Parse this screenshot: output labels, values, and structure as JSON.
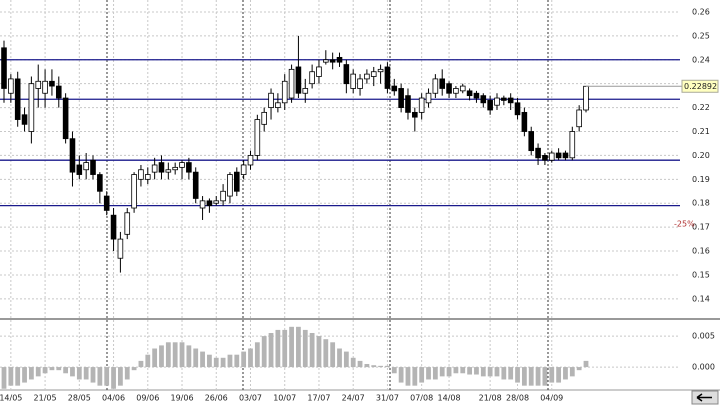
{
  "chart_data": [
    {
      "type": "candlestick",
      "categories": [
        null,
        "14/05",
        null,
        null,
        null,
        null,
        "21/05",
        null,
        null,
        null,
        null,
        "28/05",
        null,
        null,
        null,
        null,
        "04/06",
        null,
        null,
        null,
        null,
        "09/06",
        null,
        null,
        null,
        null,
        "19/06",
        null,
        null,
        null,
        null,
        "26/06",
        null,
        null,
        null,
        null,
        "03/07",
        null,
        null,
        null,
        null,
        "10/07",
        null,
        null,
        null,
        null,
        "17/07",
        null,
        null,
        null,
        null,
        "24/07",
        null,
        null,
        null,
        null,
        "31/07",
        null,
        null,
        null,
        null,
        "07/08",
        null,
        null,
        null,
        "14/08",
        null,
        null,
        null,
        null,
        null,
        "21/08",
        null,
        null,
        null,
        "28/08",
        null,
        null,
        null,
        null,
        "04/09",
        null,
        null,
        null,
        null,
        null
      ],
      "ohlc": [
        [
          0.245,
          0.248,
          0.222,
          0.228
        ],
        [
          0.226,
          0.234,
          0.222,
          0.232
        ],
        [
          0.232,
          0.235,
          0.212,
          0.215
        ],
        [
          0.217,
          0.22,
          0.21,
          0.213
        ],
        [
          0.21,
          0.233,
          0.205,
          0.23
        ],
        [
          0.228,
          0.238,
          0.22,
          0.231
        ],
        [
          0.226,
          0.236,
          0.22,
          0.231
        ],
        [
          0.231,
          0.236,
          0.225,
          0.229
        ],
        [
          0.229,
          0.233,
          0.22,
          0.224
        ],
        [
          0.224,
          0.226,
          0.205,
          0.207
        ],
        [
          0.207,
          0.21,
          0.187,
          0.193
        ],
        [
          0.196,
          0.2,
          0.19,
          0.192
        ],
        [
          0.194,
          0.201,
          0.19,
          0.197
        ],
        [
          0.198,
          0.2,
          0.19,
          0.192
        ],
        [
          0.192,
          0.193,
          0.18,
          0.185
        ],
        [
          0.183,
          0.185,
          0.175,
          0.177
        ],
        [
          0.175,
          0.178,
          0.16,
          0.165
        ],
        [
          0.157,
          0.168,
          0.151,
          0.165
        ],
        [
          0.167,
          0.178,
          0.165,
          0.176
        ],
        [
          0.178,
          0.193,
          0.176,
          0.192
        ],
        [
          0.19,
          0.196,
          0.187,
          0.194
        ],
        [
          0.19,
          0.195,
          0.188,
          0.192
        ],
        [
          0.193,
          0.199,
          0.19,
          0.196
        ],
        [
          0.197,
          0.2,
          0.19,
          0.193
        ],
        [
          0.193,
          0.197,
          0.19,
          0.194
        ],
        [
          0.194,
          0.197,
          0.192,
          0.195
        ],
        [
          0.195,
          0.198,
          0.19,
          0.197
        ],
        [
          0.197,
          0.199,
          0.19,
          0.193
        ],
        [
          0.193,
          0.195,
          0.18,
          0.182
        ],
        [
          0.178,
          0.183,
          0.173,
          0.181
        ],
        [
          0.181,
          0.182,
          0.176,
          0.179
        ],
        [
          0.18,
          0.183,
          0.179,
          0.181
        ],
        [
          0.181,
          0.188,
          0.179,
          0.185
        ],
        [
          0.183,
          0.193,
          0.18,
          0.192
        ],
        [
          0.193,
          0.195,
          0.183,
          0.185
        ],
        [
          0.192,
          0.198,
          0.19,
          0.196
        ],
        [
          0.196,
          0.202,
          0.194,
          0.2
        ],
        [
          0.2,
          0.217,
          0.198,
          0.215
        ],
        [
          0.213,
          0.22,
          0.21,
          0.218
        ],
        [
          0.22,
          0.228,
          0.215,
          0.226
        ],
        [
          0.22,
          0.226,
          0.218,
          0.222
        ],
        [
          0.222,
          0.234,
          0.219,
          0.231
        ],
        [
          0.224,
          0.238,
          0.222,
          0.236
        ],
        [
          0.237,
          0.25,
          0.224,
          0.226
        ],
        [
          0.226,
          0.232,
          0.222,
          0.228
        ],
        [
          0.23,
          0.238,
          0.228,
          0.235
        ],
        [
          0.233,
          0.24,
          0.23,
          0.237
        ],
        [
          0.239,
          0.244,
          0.238,
          0.24
        ],
        [
          0.24,
          0.243,
          0.236,
          0.239
        ],
        [
          0.241,
          0.243,
          0.237,
          0.239
        ],
        [
          0.238,
          0.24,
          0.226,
          0.23
        ],
        [
          0.228,
          0.236,
          0.226,
          0.234
        ],
        [
          0.228,
          0.234,
          0.225,
          0.232
        ],
        [
          0.232,
          0.236,
          0.23,
          0.234
        ],
        [
          0.233,
          0.237,
          0.229,
          0.235
        ],
        [
          0.235,
          0.238,
          0.23,
          0.236
        ],
        [
          0.237,
          0.239,
          0.226,
          0.228
        ],
        [
          0.229,
          0.232,
          0.225,
          0.227
        ],
        [
          0.228,
          0.23,
          0.218,
          0.22
        ],
        [
          0.225,
          0.228,
          0.215,
          0.218
        ],
        [
          0.218,
          0.22,
          0.21,
          0.216
        ],
        [
          0.218,
          0.226,
          0.215,
          0.224
        ],
        [
          0.222,
          0.228,
          0.22,
          0.226
        ],
        [
          0.226,
          0.234,
          0.224,
          0.232
        ],
        [
          0.232,
          0.236,
          0.225,
          0.228
        ],
        [
          0.23,
          0.231,
          0.224,
          0.226
        ],
        [
          0.226,
          0.229,
          0.224,
          0.228
        ],
        [
          0.227,
          0.23,
          0.226,
          0.229
        ],
        [
          0.227,
          0.228,
          0.223,
          0.225
        ],
        [
          0.226,
          0.227,
          0.222,
          0.224
        ],
        [
          0.225,
          0.226,
          0.22,
          0.222
        ],
        [
          0.223,
          0.225,
          0.217,
          0.219
        ],
        [
          0.221,
          0.226,
          0.219,
          0.224
        ],
        [
          0.224,
          0.225,
          0.221,
          0.223
        ],
        [
          0.224,
          0.226,
          0.219,
          0.222
        ],
        [
          0.222,
          0.224,
          0.215,
          0.217
        ],
        [
          0.218,
          0.22,
          0.208,
          0.21
        ],
        [
          0.21,
          0.212,
          0.2,
          0.202
        ],
        [
          0.203,
          0.205,
          0.196,
          0.199
        ],
        [
          0.2,
          0.201,
          0.196,
          0.198
        ],
        [
          0.198,
          0.202,
          0.197,
          0.201
        ],
        [
          0.201,
          0.203,
          0.198,
          0.199
        ],
        [
          0.201,
          0.202,
          0.198,
          0.199
        ],
        [
          0.199,
          0.212,
          0.198,
          0.21
        ],
        [
          0.212,
          0.221,
          0.21,
          0.219
        ],
        [
          0.219,
          0.229,
          0.218,
          0.22892
        ]
      ],
      "up_color": "#ffffff",
      "down_color": "#000000",
      "levels": [
        0.24,
        0.2235,
        0.198,
        0.179
      ],
      "level_color": "#1a1a8c",
      "annotation": "-25%",
      "ylim": [
        0.132,
        0.265
      ],
      "yticks": [
        0.14,
        0.15,
        0.16,
        0.17,
        0.18,
        0.19,
        {
          "value": 0.2,
          "label": "0.20"
        },
        0.21,
        0.22,
        0.23,
        0.24,
        0.25,
        0.26
      ],
      "grid": true
    },
    {
      "type": "bar",
      "values": [
        -0.0035,
        -0.003,
        -0.003,
        -0.0025,
        -0.002,
        -0.0015,
        -0.001,
        -0.0005,
        -0.0005,
        -0.001,
        -0.0015,
        -0.002,
        -0.002,
        -0.0025,
        -0.003,
        -0.003,
        -0.0035,
        -0.003,
        -0.002,
        -0.0005,
        0.001,
        0.002,
        0.003,
        0.0035,
        0.004,
        0.004,
        0.004,
        0.0035,
        0.003,
        0.0025,
        0.002,
        0.0015,
        0.0015,
        0.002,
        0.002,
        0.0025,
        0.003,
        0.004,
        0.005,
        0.0055,
        0.006,
        0.006,
        0.0065,
        0.0065,
        0.006,
        0.0055,
        0.005,
        0.0045,
        0.004,
        0.003,
        0.0025,
        0.0015,
        0.001,
        0.0005,
        0.0003,
        0.0002,
        0.0002,
        -0.001,
        -0.0025,
        -0.003,
        -0.003,
        -0.0025,
        -0.002,
        -0.002,
        -0.0015,
        -0.0015,
        -0.001,
        -0.001,
        -0.0012,
        -0.0012,
        -0.0015,
        -0.0015,
        -0.0015,
        -0.002,
        -0.002,
        -0.0025,
        -0.003,
        -0.003,
        -0.003,
        -0.003,
        -0.0025,
        -0.0025,
        -0.002,
        -0.0015,
        -0.0005,
        0.001
      ],
      "color": "#b4b4b4",
      "ylim": [
        -0.0037,
        0.0076
      ],
      "yticks": [
        {
          "value": 0,
          "label": "0.000"
        },
        0.005
      ],
      "grid": true
    }
  ]
}
